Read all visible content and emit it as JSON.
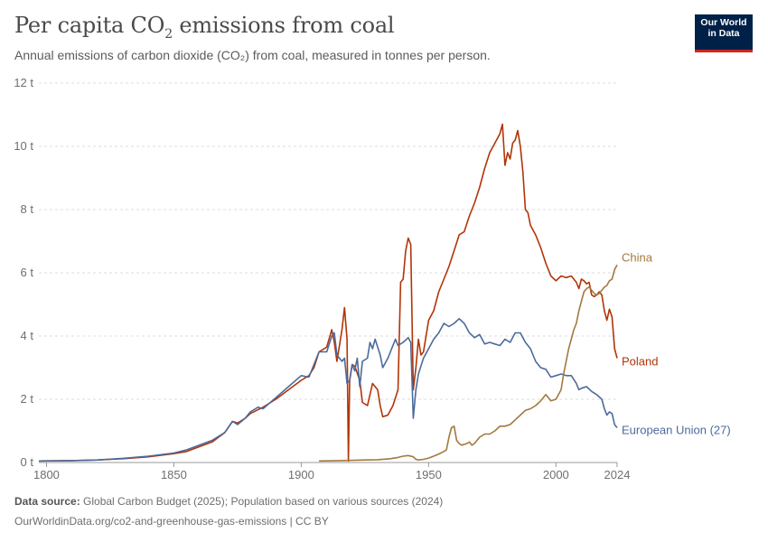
{
  "header": {
    "title_main": "Per capita CO",
    "title_sub": "2",
    "title_rest": " emissions from coal",
    "subtitle": "Annual emissions of carbon dioxide (CO₂) from coal, measured in tonnes per person.",
    "logo_line1": "Our World",
    "logo_line2": "in Data"
  },
  "footer": {
    "source_label": "Data source:",
    "source_text": " Global Carbon Budget (2025); Population based on various sources (2024)",
    "url_text": "OurWorldinData.org/co2-and-greenhouse-gas-emissions | CC BY"
  },
  "colors": {
    "Poland": "#b13507",
    "European Union (27)": "#4c6a9c",
    "China": "#a2793f",
    "grid": "#dddddd",
    "axis": "#999999"
  },
  "chart_data": {
    "type": "line",
    "xlim": [
      1797,
      2024
    ],
    "ylim": [
      0,
      12
    ],
    "x_ticks": [
      1800,
      1850,
      1900,
      1950,
      2000,
      2024
    ],
    "y_ticks": [
      0,
      2,
      4,
      6,
      8,
      10,
      12
    ],
    "y_tick_labels": [
      "0 t",
      "2 t",
      "4 t",
      "6 t",
      "8 t",
      "10 t",
      "12 t"
    ],
    "grid": "horizontal dashed",
    "series": [
      {
        "name": "Poland",
        "points": [
          [
            1797,
            0.05
          ],
          [
            1810,
            0.06
          ],
          [
            1820,
            0.08
          ],
          [
            1830,
            0.12
          ],
          [
            1840,
            0.18
          ],
          [
            1850,
            0.28
          ],
          [
            1855,
            0.35
          ],
          [
            1860,
            0.5
          ],
          [
            1865,
            0.65
          ],
          [
            1870,
            0.95
          ],
          [
            1873,
            1.3
          ],
          [
            1875,
            1.25
          ],
          [
            1878,
            1.4
          ],
          [
            1880,
            1.55
          ],
          [
            1885,
            1.75
          ],
          [
            1890,
            2.0
          ],
          [
            1895,
            2.3
          ],
          [
            1900,
            2.6
          ],
          [
            1903,
            2.75
          ],
          [
            1905,
            3.0
          ],
          [
            1907,
            3.5
          ],
          [
            1910,
            3.65
          ],
          [
            1912,
            4.2
          ],
          [
            1913,
            3.8
          ],
          [
            1914,
            3.2
          ],
          [
            1916,
            4.2
          ],
          [
            1917,
            4.9
          ],
          [
            1918,
            3.9
          ],
          [
            1918.5,
            0.05
          ],
          [
            1919,
            2.6
          ],
          [
            1920,
            3.1
          ],
          [
            1921,
            3.05
          ],
          [
            1923,
            2.6
          ],
          [
            1924,
            1.9
          ],
          [
            1926,
            1.8
          ],
          [
            1928,
            2.5
          ],
          [
            1930,
            2.3
          ],
          [
            1931,
            1.8
          ],
          [
            1932,
            1.45
          ],
          [
            1934,
            1.5
          ],
          [
            1936,
            1.8
          ],
          [
            1938,
            2.3
          ],
          [
            1939,
            5.7
          ],
          [
            1940,
            5.8
          ],
          [
            1941,
            6.7
          ],
          [
            1942,
            7.1
          ],
          [
            1943,
            6.9
          ],
          [
            1944,
            2.3
          ],
          [
            1945,
            3.0
          ],
          [
            1946,
            3.9
          ],
          [
            1947,
            3.4
          ],
          [
            1948,
            3.5
          ],
          [
            1950,
            4.5
          ],
          [
            1952,
            4.8
          ],
          [
            1954,
            5.4
          ],
          [
            1956,
            5.8
          ],
          [
            1958,
            6.2
          ],
          [
            1960,
            6.7
          ],
          [
            1962,
            7.2
          ],
          [
            1964,
            7.3
          ],
          [
            1966,
            7.8
          ],
          [
            1968,
            8.2
          ],
          [
            1970,
            8.7
          ],
          [
            1972,
            9.3
          ],
          [
            1974,
            9.8
          ],
          [
            1976,
            10.1
          ],
          [
            1978,
            10.4
          ],
          [
            1979,
            10.7
          ],
          [
            1980,
            9.4
          ],
          [
            1981,
            9.8
          ],
          [
            1982,
            9.6
          ],
          [
            1983,
            10.1
          ],
          [
            1984,
            10.2
          ],
          [
            1985,
            10.5
          ],
          [
            1986,
            10.0
          ],
          [
            1987,
            9.2
          ],
          [
            1988,
            8.0
          ],
          [
            1989,
            7.9
          ],
          [
            1990,
            7.5
          ],
          [
            1992,
            7.2
          ],
          [
            1994,
            6.8
          ],
          [
            1996,
            6.3
          ],
          [
            1998,
            5.9
          ],
          [
            2000,
            5.75
          ],
          [
            2002,
            5.9
          ],
          [
            2004,
            5.85
          ],
          [
            2006,
            5.9
          ],
          [
            2008,
            5.7
          ],
          [
            2009,
            5.5
          ],
          [
            2010,
            5.8
          ],
          [
            2011,
            5.75
          ],
          [
            2012,
            5.65
          ],
          [
            2013,
            5.7
          ],
          [
            2014,
            5.3
          ],
          [
            2015,
            5.25
          ],
          [
            2016,
            5.3
          ],
          [
            2017,
            5.4
          ],
          [
            2018,
            5.3
          ],
          [
            2019,
            4.8
          ],
          [
            2020,
            4.5
          ],
          [
            2021,
            4.85
          ],
          [
            2022,
            4.6
          ],
          [
            2023,
            3.6
          ],
          [
            2024,
            3.3
          ]
        ]
      },
      {
        "name": "European Union (27)",
        "points": [
          [
            1797,
            0.05
          ],
          [
            1810,
            0.06
          ],
          [
            1820,
            0.08
          ],
          [
            1830,
            0.13
          ],
          [
            1840,
            0.2
          ],
          [
            1850,
            0.3
          ],
          [
            1855,
            0.4
          ],
          [
            1860,
            0.55
          ],
          [
            1865,
            0.7
          ],
          [
            1870,
            0.95
          ],
          [
            1873,
            1.3
          ],
          [
            1875,
            1.2
          ],
          [
            1878,
            1.4
          ],
          [
            1880,
            1.6
          ],
          [
            1883,
            1.75
          ],
          [
            1885,
            1.7
          ],
          [
            1890,
            2.05
          ],
          [
            1895,
            2.4
          ],
          [
            1900,
            2.75
          ],
          [
            1903,
            2.7
          ],
          [
            1905,
            3.1
          ],
          [
            1907,
            3.5
          ],
          [
            1910,
            3.5
          ],
          [
            1912,
            4.0
          ],
          [
            1913,
            4.1
          ],
          [
            1914,
            3.4
          ],
          [
            1916,
            3.2
          ],
          [
            1917,
            3.3
          ],
          [
            1918,
            2.5
          ],
          [
            1919,
            2.6
          ],
          [
            1920,
            3.1
          ],
          [
            1921,
            2.9
          ],
          [
            1922,
            3.3
          ],
          [
            1923,
            2.4
          ],
          [
            1924,
            3.2
          ],
          [
            1926,
            3.3
          ],
          [
            1927,
            3.8
          ],
          [
            1928,
            3.6
          ],
          [
            1929,
            3.9
          ],
          [
            1931,
            3.4
          ],
          [
            1932,
            3.0
          ],
          [
            1934,
            3.3
          ],
          [
            1935,
            3.5
          ],
          [
            1937,
            3.9
          ],
          [
            1938,
            3.7
          ],
          [
            1940,
            3.8
          ],
          [
            1942,
            3.95
          ],
          [
            1943,
            3.8
          ],
          [
            1944,
            1.4
          ],
          [
            1945,
            2.3
          ],
          [
            1946,
            2.8
          ],
          [
            1948,
            3.3
          ],
          [
            1950,
            3.6
          ],
          [
            1952,
            3.9
          ],
          [
            1954,
            4.1
          ],
          [
            1956,
            4.4
          ],
          [
            1958,
            4.3
          ],
          [
            1960,
            4.4
          ],
          [
            1962,
            4.55
          ],
          [
            1964,
            4.4
          ],
          [
            1966,
            4.1
          ],
          [
            1968,
            3.95
          ],
          [
            1970,
            4.05
          ],
          [
            1972,
            3.75
          ],
          [
            1974,
            3.8
          ],
          [
            1976,
            3.75
          ],
          [
            1978,
            3.7
          ],
          [
            1980,
            3.9
          ],
          [
            1982,
            3.8
          ],
          [
            1984,
            4.1
          ],
          [
            1986,
            4.1
          ],
          [
            1988,
            3.8
          ],
          [
            1990,
            3.6
          ],
          [
            1992,
            3.2
          ],
          [
            1994,
            3.0
          ],
          [
            1996,
            2.95
          ],
          [
            1998,
            2.7
          ],
          [
            2000,
            2.75
          ],
          [
            2002,
            2.8
          ],
          [
            2004,
            2.75
          ],
          [
            2006,
            2.75
          ],
          [
            2008,
            2.5
          ],
          [
            2009,
            2.3
          ],
          [
            2010,
            2.35
          ],
          [
            2012,
            2.4
          ],
          [
            2014,
            2.25
          ],
          [
            2016,
            2.15
          ],
          [
            2018,
            2.0
          ],
          [
            2019,
            1.7
          ],
          [
            2020,
            1.5
          ],
          [
            2021,
            1.6
          ],
          [
            2022,
            1.55
          ],
          [
            2023,
            1.2
          ],
          [
            2024,
            1.1
          ]
        ]
      },
      {
        "name": "China",
        "points": [
          [
            1907,
            0.05
          ],
          [
            1915,
            0.06
          ],
          [
            1920,
            0.07
          ],
          [
            1925,
            0.08
          ],
          [
            1930,
            0.09
          ],
          [
            1935,
            0.12
          ],
          [
            1938,
            0.16
          ],
          [
            1940,
            0.2
          ],
          [
            1942,
            0.22
          ],
          [
            1944,
            0.18
          ],
          [
            1945,
            0.1
          ],
          [
            1946,
            0.08
          ],
          [
            1948,
            0.1
          ],
          [
            1950,
            0.14
          ],
          [
            1952,
            0.2
          ],
          [
            1954,
            0.27
          ],
          [
            1956,
            0.35
          ],
          [
            1957,
            0.4
          ],
          [
            1958,
            0.8
          ],
          [
            1959,
            1.1
          ],
          [
            1960,
            1.15
          ],
          [
            1961,
            0.7
          ],
          [
            1962,
            0.6
          ],
          [
            1963,
            0.55
          ],
          [
            1965,
            0.6
          ],
          [
            1966,
            0.65
          ],
          [
            1967,
            0.55
          ],
          [
            1968,
            0.6
          ],
          [
            1969,
            0.7
          ],
          [
            1970,
            0.8
          ],
          [
            1972,
            0.9
          ],
          [
            1974,
            0.9
          ],
          [
            1976,
            1.0
          ],
          [
            1978,
            1.15
          ],
          [
            1980,
            1.15
          ],
          [
            1982,
            1.2
          ],
          [
            1984,
            1.35
          ],
          [
            1986,
            1.5
          ],
          [
            1988,
            1.65
          ],
          [
            1990,
            1.7
          ],
          [
            1992,
            1.8
          ],
          [
            1994,
            1.95
          ],
          [
            1996,
            2.15
          ],
          [
            1998,
            1.95
          ],
          [
            2000,
            2.0
          ],
          [
            2002,
            2.3
          ],
          [
            2003,
            2.8
          ],
          [
            2004,
            3.2
          ],
          [
            2005,
            3.6
          ],
          [
            2006,
            3.9
          ],
          [
            2007,
            4.2
          ],
          [
            2008,
            4.4
          ],
          [
            2009,
            4.8
          ],
          [
            2010,
            5.1
          ],
          [
            2011,
            5.4
          ],
          [
            2012,
            5.5
          ],
          [
            2013,
            5.55
          ],
          [
            2014,
            5.45
          ],
          [
            2015,
            5.35
          ],
          [
            2016,
            5.3
          ],
          [
            2017,
            5.35
          ],
          [
            2018,
            5.45
          ],
          [
            2019,
            5.55
          ],
          [
            2020,
            5.6
          ],
          [
            2021,
            5.75
          ],
          [
            2022,
            5.8
          ],
          [
            2023,
            6.1
          ],
          [
            2024,
            6.25
          ]
        ]
      }
    ]
  }
}
